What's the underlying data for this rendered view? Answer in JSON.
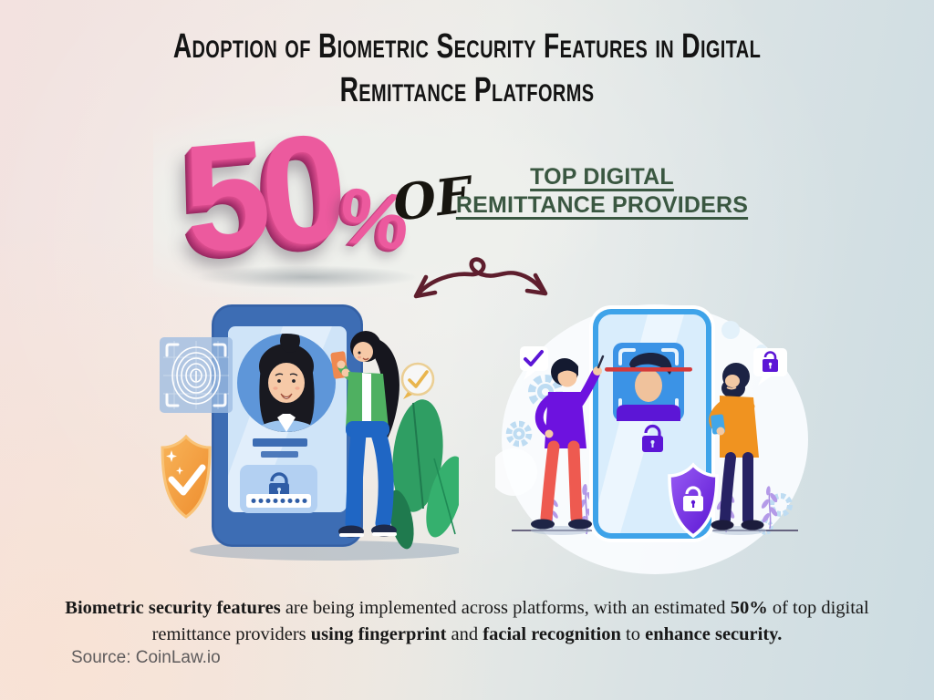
{
  "header": {
    "title_line1": "Adoption of Biometric Security Features in Digital",
    "title_line2": "Remittance Platforms"
  },
  "stat": {
    "value": "50",
    "unit": "%",
    "connector": "OF",
    "subject_line1": "TOP DIGITAL",
    "subject_line2": "REMITTANCE PROVIDERS"
  },
  "description": {
    "segments": [
      {
        "text": "Biometric security features",
        "bold": true
      },
      {
        "text": " are being implemented across platforms, with an estimated ",
        "bold": false
      },
      {
        "text": "50%",
        "bold": true
      },
      {
        "text": " of top digital remittance providers ",
        "bold": false
      },
      {
        "text": "using fingerprint",
        "bold": true
      },
      {
        "text": " and ",
        "bold": false
      },
      {
        "text": "facial recognition",
        "bold": true
      },
      {
        "text": " to ",
        "bold": false
      },
      {
        "text": "enhance security.",
        "bold": true
      }
    ]
  },
  "source": {
    "label": "Source: CoinLaw.io"
  },
  "icons": {
    "arrow": "doodle-double-arrow",
    "left_illustration": "phone-fingerprint-login-illustration",
    "right_illustration": "phone-facial-recognition-illustration"
  },
  "colors": {
    "stat_pink": "#ec5a9e",
    "stat_pink_dark": "#a32e69",
    "heading_green": "#3a5741",
    "arrow_maroon": "#5e1e2d",
    "title_black": "#141414",
    "bg_left_pink": "#f3e2e0",
    "bg_right_blue": "#ccdce2",
    "phone_blue": "#3d6db4",
    "phone_cyan": "#3ea3e9",
    "shield_orange": "#ef8d2e",
    "security_purple": "#5c16d6"
  }
}
